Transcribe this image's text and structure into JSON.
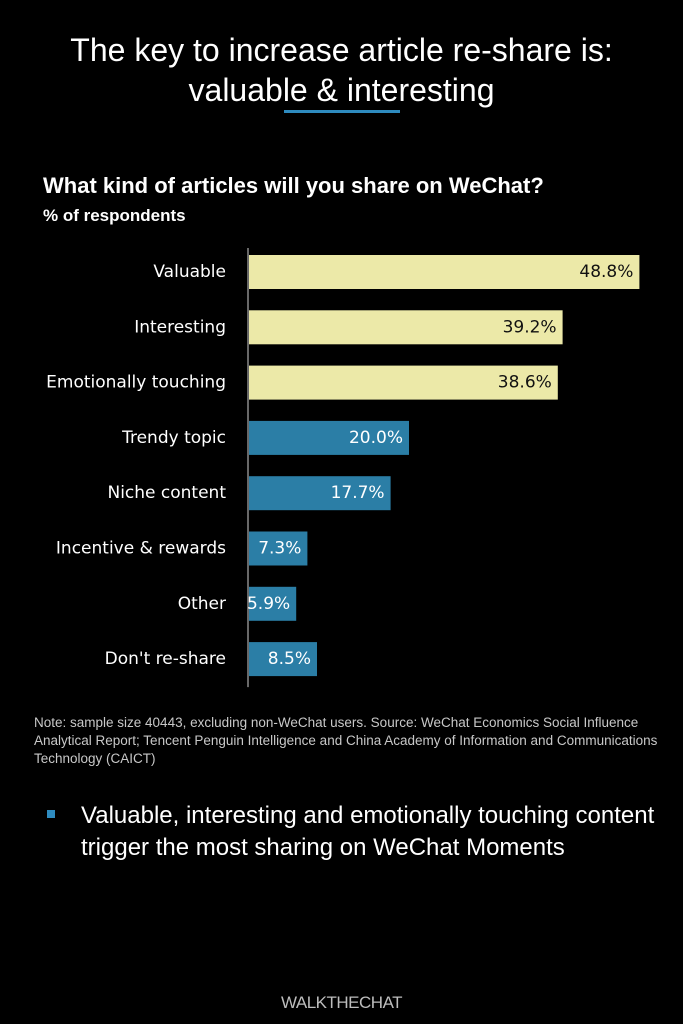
{
  "title_line1": "The key to increase article re-share is:",
  "title_line2": "valuable & interesting",
  "colors": {
    "background": "#000000",
    "accent": "#2e8bbf",
    "highlight_bar": "#ece9a8",
    "standard_bar": "#2b7ea6"
  },
  "chart_data": {
    "type": "bar",
    "orientation": "horizontal",
    "title": "What kind of articles will you share on WeChat?",
    "subtitle": "% of respondents",
    "categories": [
      "Valuable",
      "Interesting",
      "Emotionally touching",
      "Trendy topic",
      "Niche content",
      "Incentive & rewards",
      "Other",
      "Don't re-share"
    ],
    "values": [
      48.8,
      39.2,
      38.6,
      20.0,
      17.7,
      7.3,
      5.9,
      8.5
    ],
    "value_labels": [
      "48.8%",
      "39.2%",
      "38.6%",
      "20.0%",
      "17.7%",
      "7.3%",
      "5.9%",
      "8.5%"
    ],
    "highlighted": [
      true,
      true,
      true,
      false,
      false,
      false,
      false,
      false
    ],
    "xlim": [
      0,
      50
    ],
    "grid": false,
    "legend": "none"
  },
  "note": "Note: sample size 40443, excluding non-WeChat users. Source: WeChat Economics Social Influence Analytical Report; Tencent Penguin Intelligence and China Academy of Information and Communications Technology (CAICT)",
  "takeaway": "Valuable, interesting and emotionally touching content trigger the most sharing on WeChat Moments",
  "brand": "WALKTHECHAT",
  "icons": {
    "bullet": "square-bullet-icon"
  }
}
